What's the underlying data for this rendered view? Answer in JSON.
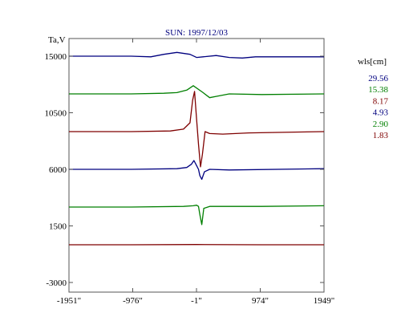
{
  "chart_data": {
    "type": "line",
    "title": "SUN: 1997/12/03",
    "ylabel": "Ta,V",
    "legend_title": "wls[cm]",
    "legend_position": "right",
    "xlim": [
      -1951,
      1949
    ],
    "ylim": [
      -3000,
      15000
    ],
    "x_ticks": [
      {
        "value": -1951,
        "label": "-1951\""
      },
      {
        "value": -976,
        "label": "-976\""
      },
      {
        "value": -1,
        "label": "-1\""
      },
      {
        "value": 974,
        "label": "974\""
      },
      {
        "value": 1949,
        "label": "1949\""
      }
    ],
    "y_ticks": [
      {
        "value": 15000,
        "label": "15000"
      },
      {
        "value": 10500,
        "label": "10500"
      },
      {
        "value": 6000,
        "label": "6000"
      },
      {
        "value": 1500,
        "label": "1500"
      },
      {
        "value": -3000,
        "label": "-3000"
      }
    ],
    "series": [
      {
        "name": "29.56",
        "color": "#00007f",
        "x": [
          -1951,
          -1500,
          -1000,
          -700,
          -500,
          -300,
          -100,
          0,
          100,
          300,
          500,
          700,
          900,
          1200,
          1500,
          1949
        ],
        "y": [
          15000,
          15000,
          15000,
          14950,
          15150,
          15300,
          15150,
          14900,
          14950,
          15050,
          14900,
          14850,
          14950,
          14950,
          14950,
          14950
        ]
      },
      {
        "name": "15.38",
        "color": "#007f00",
        "x": [
          -1951,
          -1000,
          -500,
          -300,
          -150,
          -50,
          100,
          200,
          300,
          500,
          1000,
          1949
        ],
        "y": [
          12000,
          12000,
          12050,
          12100,
          12300,
          12650,
          12100,
          11700,
          11800,
          12000,
          11950,
          12000
        ]
      },
      {
        "name": "8.17",
        "color": "#7f0000",
        "x": [
          -1951,
          -1000,
          -400,
          -200,
          -100,
          -60,
          -30,
          0,
          30,
          60,
          90,
          130,
          200,
          400,
          800,
          1949
        ],
        "y": [
          9000,
          9000,
          9050,
          9200,
          9700,
          11500,
          12200,
          10000,
          8000,
          6200,
          7200,
          9000,
          8850,
          8800,
          8900,
          9000
        ]
      },
      {
        "name": "4.93",
        "color": "#00007f",
        "x": [
          -1951,
          -1000,
          -300,
          -150,
          -80,
          -40,
          0,
          30,
          50,
          80,
          120,
          200,
          500,
          1949
        ],
        "y": [
          6000,
          6000,
          6050,
          6150,
          6400,
          6700,
          6300,
          6000,
          5500,
          5200,
          5800,
          6000,
          5950,
          6050
        ]
      },
      {
        "name": "2.90",
        "color": "#007f00",
        "x": [
          -1951,
          -1000,
          -200,
          -50,
          0,
          30,
          50,
          80,
          110,
          200,
          1000,
          1949
        ],
        "y": [
          3000,
          3000,
          3050,
          3100,
          3150,
          3050,
          2400,
          1600,
          2900,
          3050,
          3050,
          3100
        ]
      },
      {
        "name": "1.83",
        "color": "#7f0000",
        "x": [
          -1951,
          -1000,
          0,
          1000,
          1949
        ],
        "y": [
          0,
          0,
          20,
          0,
          0
        ]
      }
    ]
  }
}
